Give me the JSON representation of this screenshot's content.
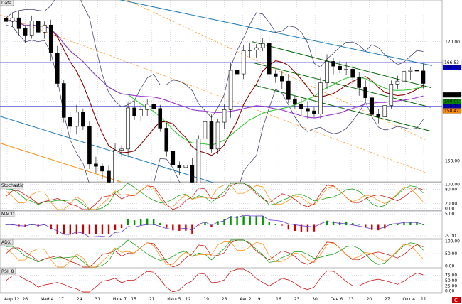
{
  "chart_data": {
    "type": "line",
    "panels": [
      {
        "title": "Data",
        "ylim": [
          146.5,
          177
        ],
        "yticks": [
          150.0,
          160.0,
          170.0
        ],
        "price_labels": [
          {
            "text": "166.53",
            "value": 166.53,
            "bg": "#ffffff",
            "fg": "#000000"
          },
          {
            "text": "165.72",
            "value": 165.72,
            "bg": "#0000cc",
            "fg": "#ffffff"
          },
          {
            "text": "161.08",
            "value": 161.08,
            "bg": "#000000",
            "fg": "#ffffff"
          },
          {
            "text": "160.01",
            "value": 160.01,
            "bg": "#008800",
            "fg": "#ffffff"
          },
          {
            "text": "159.18",
            "value": 159.18,
            "bg": "#0000cc",
            "fg": "#ffffff"
          },
          {
            "text": "158.42",
            "value": 158.42,
            "bg": "#ff8800",
            "fg": "#ffffff"
          }
        ]
      },
      {
        "title": "Stochastic",
        "ylim": [
          -5,
          105
        ],
        "yticks": [
          {
            "text": "100.00",
            "value": 100
          },
          {
            "text": "80.00",
            "value": 80
          },
          {
            "text": "20.00",
            "value": 20
          },
          {
            "text": "0.00",
            "value": 0
          }
        ]
      },
      {
        "title": "MACD",
        "ylim": [
          -6,
          6
        ],
        "yticks": [
          {
            "text": "5.00",
            "value": 5
          },
          {
            "text": "-5.00",
            "value": -5
          }
        ]
      },
      {
        "title": "ADX",
        "ylim": [
          -5,
          105
        ],
        "yticks": [
          {
            "text": "100.00",
            "value": 100
          },
          {
            "text": "50.00",
            "value": 50
          },
          {
            "text": "0.00",
            "value": 0
          }
        ]
      },
      {
        "title": "RSI, 8",
        "ylim": [
          -5,
          105
        ],
        "yticks": [
          {
            "text": "75.00",
            "value": 75
          },
          {
            "text": "50.00",
            "value": 50
          },
          {
            "text": "25.00",
            "value": 25
          },
          {
            "text": "0.00",
            "value": 0
          }
        ]
      }
    ],
    "x_tick_labels": [
      "Апр 12",
      "26",
      "Май 4",
      "17",
      "24",
      "31",
      "Июн 7",
      "15",
      "21",
      "Июл 5",
      "12",
      "19",
      "26",
      "Авг 2",
      "9",
      "16",
      "23",
      "30",
      "Сен 6",
      "13",
      "20",
      "27",
      "Окт 4",
      "11"
    ],
    "close_series": [
      173.4,
      174.0,
      172.2,
      171.1,
      173.5,
      171.6,
      172.8,
      168.1,
      163.0,
      157.3,
      155.8,
      158.2,
      155.8,
      149.5,
      149.1,
      148.3,
      146.3,
      151.8,
      152.0,
      158.9,
      157.5,
      158.6,
      159.5,
      158.8,
      155.5,
      151.6,
      149.3,
      148.9,
      149.3,
      146.1,
      153.7,
      156.6,
      152.0,
      156.5,
      158.6,
      165.2,
      164.6,
      168.5,
      168.6,
      169.0,
      169.7,
      164.6,
      164.2,
      163.4,
      160.3,
      159.5,
      158.8,
      158.4,
      157.9,
      163.1,
      166.7,
      165.9,
      165.3,
      165.4,
      164.0,
      162.3,
      160.6,
      157.8,
      157.4,
      159.3,
      162.9,
      163.4,
      165.0,
      165.2,
      165.1,
      163.0
    ],
    "series": [
      {
        "name": "close",
        "color": "#000000"
      },
      {
        "name": "ma_short",
        "color": "#8b0000"
      },
      {
        "name": "ma_mid",
        "color": "#33cc33"
      },
      {
        "name": "ma_long",
        "color": "#9933cc"
      }
    ],
    "grid": true,
    "colors": {
      "background": "#ffffff",
      "grid": "#aaaacc",
      "channel_blue": "#1a7ab8",
      "channel_green": "#006600",
      "channel_orange": "#ff8800"
    }
  },
  "corner": {
    "badge": "C"
  }
}
